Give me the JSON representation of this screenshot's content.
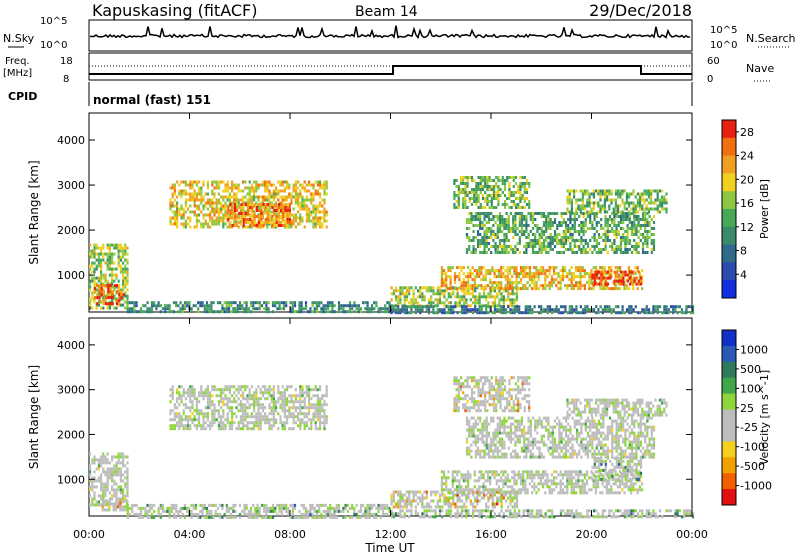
{
  "header": {
    "station": "Kapuskasing (fitACF)",
    "beam": "Beam 14",
    "date": "29/Dec/2018"
  },
  "strip_labels": {
    "nsky": "N.Sky",
    "nsky_tick_top": "10^5",
    "nsky_tick_bottom": "10^0",
    "nsearch": "N.Search",
    "nsearch_tick_top": "10^5",
    "nsearch_tick_bottom": "10^0",
    "freq": "Freq.",
    "freq_unit": "[MHz]",
    "freq_tick_top": "18",
    "freq_tick_bottom": "8",
    "nave": "Nave",
    "nave_tick_top": "60",
    "nave_tick_bottom": "0",
    "cpid": "CPID",
    "cpid_value": "normal (fast) 151"
  },
  "colors": {
    "velocity_scale": [
      "#1030c8",
      "#2a5ab8",
      "#2f7a5a",
      "#3fa64a",
      "#8fd63a",
      "#bdbdbd",
      "#bdbdbd",
      "#f5d020",
      "#f0a000",
      "#f06000",
      "#e21010"
    ],
    "power_scale": [
      "#1030e0",
      "#2a4ab0",
      "#2f6a8a",
      "#3a8a6a",
      "#48a858",
      "#8cc840",
      "#f0d020",
      "#f0a020",
      "#f07010",
      "#e82010"
    ]
  },
  "chart_data": [
    {
      "type": "heatmap",
      "title": "",
      "xlabel": "Time UT",
      "ylabel": "Slant Range [km]",
      "x_ticks": [
        "00:00",
        "04:00",
        "08:00",
        "12:00",
        "16:00",
        "20:00",
        "00:00"
      ],
      "y_ticks": [
        1000,
        2000,
        3000,
        4000
      ],
      "xlim_hours": [
        0,
        24
      ],
      "ylim_km": [
        180,
        4600
      ],
      "colorbar": {
        "label": "Power [dB]",
        "ticks": [
          4,
          8,
          12,
          16,
          20,
          24,
          28
        ],
        "range": [
          0,
          30
        ]
      },
      "regions": [
        {
          "t0": 0.0,
          "t1": 1.5,
          "r0": 300,
          "r1": 1700,
          "level": 0.55
        },
        {
          "t0": 0.2,
          "t1": 1.4,
          "r0": 350,
          "r1": 800,
          "level": 0.85
        },
        {
          "t0": 1.5,
          "t1": 12.0,
          "r0": 180,
          "r1": 420,
          "level": 0.35
        },
        {
          "t0": 3.2,
          "t1": 9.5,
          "r0": 2100,
          "r1": 3100,
          "level": 0.65
        },
        {
          "t0": 5.5,
          "t1": 8.0,
          "r0": 2100,
          "r1": 2600,
          "level": 0.8
        },
        {
          "t0": 12.0,
          "t1": 17.0,
          "r0": 350,
          "r1": 750,
          "level": 0.55
        },
        {
          "t0": 14.0,
          "t1": 22.0,
          "r0": 700,
          "r1": 1200,
          "level": 0.7
        },
        {
          "t0": 20.0,
          "t1": 22.0,
          "r0": 800,
          "r1": 1100,
          "level": 0.9
        },
        {
          "t0": 15.0,
          "t1": 22.5,
          "r0": 1500,
          "r1": 2400,
          "level": 0.45
        },
        {
          "t0": 14.5,
          "t1": 17.5,
          "r0": 2500,
          "r1": 3200,
          "level": 0.5
        },
        {
          "t0": 19.0,
          "t1": 23.0,
          "r0": 2400,
          "r1": 2900,
          "level": 0.5
        },
        {
          "t0": 12.0,
          "t1": 24.0,
          "r0": 180,
          "r1": 330,
          "level": 0.3
        }
      ]
    },
    {
      "type": "heatmap",
      "title": "",
      "xlabel": "Time UT",
      "ylabel": "Slant Range [km]",
      "x_ticks": [
        "00:00",
        "04:00",
        "08:00",
        "12:00",
        "16:00",
        "20:00",
        "00:00"
      ],
      "y_ticks": [
        1000,
        2000,
        3000,
        4000
      ],
      "xlim_hours": [
        0,
        24
      ],
      "ylim_km": [
        180,
        4600
      ],
      "colorbar": {
        "label": "Velocity [m s^-1]",
        "ticks": [
          1000,
          500,
          100,
          25,
          -25,
          -100,
          -500,
          -1000
        ]
      },
      "regions": [
        {
          "t0": 0.0,
          "t1": 1.5,
          "r0": 400,
          "r1": 1600,
          "level": 0.5
        },
        {
          "t0": 0.5,
          "t1": 1.5,
          "r0": 300,
          "r1": 550,
          "level": 0.75
        },
        {
          "t0": 1.5,
          "t1": 12.0,
          "r0": 180,
          "r1": 450,
          "level": 0.35
        },
        {
          "t0": 3.2,
          "t1": 9.5,
          "r0": 2100,
          "r1": 3100,
          "level": 0.5
        },
        {
          "t0": 12.0,
          "t1": 17.0,
          "r0": 350,
          "r1": 750,
          "level": 0.75
        },
        {
          "t0": 14.0,
          "t1": 22.0,
          "r0": 700,
          "r1": 1200,
          "level": 0.5
        },
        {
          "t0": 20.0,
          "t1": 22.0,
          "r0": 1000,
          "r1": 1500,
          "level": 0.3
        },
        {
          "t0": 15.0,
          "t1": 22.5,
          "r0": 1500,
          "r1": 2400,
          "level": 0.5
        },
        {
          "t0": 14.5,
          "t1": 17.5,
          "r0": 2500,
          "r1": 3300,
          "level": 0.7
        },
        {
          "t0": 19.0,
          "t1": 23.0,
          "r0": 2400,
          "r1": 2800,
          "level": 0.5
        },
        {
          "t0": 12.0,
          "t1": 24.0,
          "r0": 180,
          "r1": 330,
          "level": 0.35
        }
      ]
    }
  ]
}
